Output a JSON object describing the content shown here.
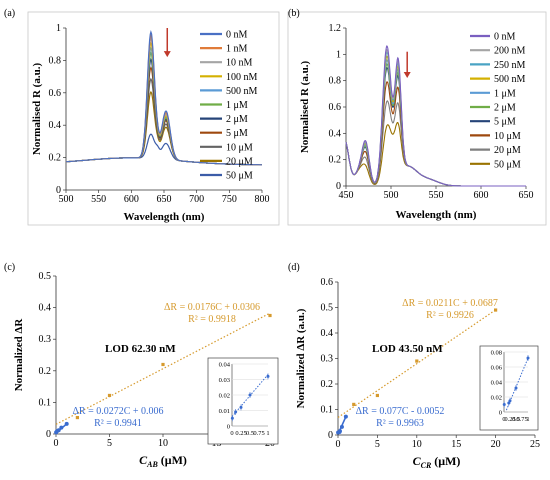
{
  "chart_data": [
    {
      "type": "line",
      "panel_label": "(a)",
      "xlabel": "Wavelength (nm)",
      "ylabel": "Normalised R (a.u.)",
      "xlim": [
        500,
        800
      ],
      "ylim": [
        0,
        1
      ],
      "xticks": [
        "500",
        "550",
        "600",
        "650",
        "700",
        "750",
        "800"
      ],
      "yticks": [
        "0",
        "0.2",
        "0.4",
        "0.6",
        "0.8",
        "1"
      ],
      "legend_position": "right",
      "arrow": {
        "x": 655,
        "from_y": 1.0,
        "to_y": 0.82,
        "color": "#c0392b"
      },
      "series": [
        {
          "name": "0 nM",
          "color": "#4a70c4",
          "peak1": 0.99,
          "peak2": 0.5
        },
        {
          "name": "1 nM",
          "color": "#e07b39",
          "peak1": 0.97,
          "peak2": 0.49
        },
        {
          "name": "10 nM",
          "color": "#a5a5a5",
          "peak1": 0.95,
          "peak2": 0.48
        },
        {
          "name": "100 nM",
          "color": "#d4b000",
          "peak1": 0.92,
          "peak2": 0.47
        },
        {
          "name": "500 nM",
          "color": "#5b9bd5",
          "peak1": 0.89,
          "peak2": 0.47
        },
        {
          "name": "1 μM",
          "color": "#70ad47",
          "peak1": 0.86,
          "peak2": 0.46
        },
        {
          "name": "2 μM",
          "color": "#264478",
          "peak1": 0.82,
          "peak2": 0.45
        },
        {
          "name": "5 μM",
          "color": "#9e480e",
          "peak1": 0.77,
          "peak2": 0.44
        },
        {
          "name": "10 μM",
          "color": "#636363",
          "peak1": 0.7,
          "peak2": 0.42
        },
        {
          "name": "20 μM",
          "color": "#997300",
          "peak1": 0.62,
          "peak2": 0.4
        },
        {
          "name": "50 μM",
          "color": "#3b5ca8",
          "peak1": 0.36,
          "peak2": 0.3
        }
      ]
    },
    {
      "type": "line",
      "panel_label": "(b)",
      "xlabel": "Wavelength (nm)",
      "ylabel": "Normalised R (a.u.)",
      "xlim": [
        450,
        650
      ],
      "ylim": [
        0,
        1.2
      ],
      "xticks": [
        "450",
        "500",
        "550",
        "600",
        "650"
      ],
      "yticks": [
        "0",
        "0.2",
        "0.4",
        "0.6",
        "0.8",
        "1",
        "1.2"
      ],
      "legend_position": "right",
      "arrow": {
        "x": 518,
        "from_y": 1.02,
        "to_y": 0.82,
        "color": "#c0392b"
      },
      "series": [
        {
          "name": "0 nM",
          "color": "#7a5fc0",
          "scale": 1.0
        },
        {
          "name": "200 nM",
          "color": "#a5a5a5",
          "scale": 0.97
        },
        {
          "name": "250 nM",
          "color": "#4aa3c4",
          "scale": 0.95
        },
        {
          "name": "500 nM",
          "color": "#d4b000",
          "scale": 0.92
        },
        {
          "name": "1 μM",
          "color": "#5b9bd5",
          "scale": 0.89
        },
        {
          "name": "2 μM",
          "color": "#70ad47",
          "scale": 0.86
        },
        {
          "name": "5  μM",
          "color": "#264478",
          "scale": 0.83
        },
        {
          "name": "10 μM",
          "color": "#9e480e",
          "scale": 0.72
        },
        {
          "name": "20 μM",
          "color": "#7f7f7f",
          "scale": 0.57
        },
        {
          "name": "50 μM",
          "color": "#997300",
          "scale": 0.38
        }
      ]
    },
    {
      "type": "scatter",
      "panel_label": "(c)",
      "xlabel": "C",
      "xlabel_sub": "AB",
      "xlabel_unit": " (μM)",
      "ylabel": "Normalized ΔR",
      "xlim": [
        0,
        20
      ],
      "ylim": [
        0,
        0.5
      ],
      "xticks": [
        "0",
        "5",
        "10",
        "15",
        "20"
      ],
      "yticks": [
        "0",
        "0.1",
        "0.2",
        "0.3",
        "0.4",
        "0.5"
      ],
      "lod_text": "LOD 62.30 nM",
      "high_series": {
        "color": "#d69a2d",
        "points": [
          [
            2,
            0.052
          ],
          [
            5,
            0.122
          ],
          [
            10,
            0.22
          ],
          [
            20,
            0.375
          ]
        ],
        "fit": {
          "slope": 0.0176,
          "intercept": 0.0306,
          "x_range": [
            0,
            20
          ]
        },
        "equation": "ΔR = 0.0176C + 0.0306",
        "r2": "R² = 0.9918"
      },
      "low_series": {
        "color": "#3a6ccf",
        "points": [
          [
            0.01,
            0.005
          ],
          [
            0.1,
            0.009
          ],
          [
            0.25,
            0.012
          ],
          [
            0.5,
            0.02
          ],
          [
            1,
            0.032
          ]
        ],
        "fit": {
          "slope": 0.0272,
          "intercept": 0.006,
          "x_range": [
            0,
            1
          ]
        },
        "equation": "ΔR = 0.0272C + 0.006",
        "r2": "R² = 0.9941"
      },
      "inset": {
        "xlim": [
          0,
          1
        ],
        "ylim": [
          0,
          0.04
        ],
        "xticks": [
          "0",
          "0.25",
          "0.5",
          "0.75",
          "1"
        ],
        "yticks": [
          "0",
          "0.01",
          "0.02",
          "0.03",
          "0.04"
        ]
      }
    },
    {
      "type": "scatter",
      "panel_label": "(d)",
      "xlabel": "C",
      "xlabel_sub": "CR",
      "xlabel_unit": " (μM)",
      "ylabel": "Normalized ΔR (a.u.)",
      "xlim": [
        0,
        25
      ],
      "ylim": [
        0,
        0.6
      ],
      "xticks": [
        "0",
        "5",
        "10",
        "15",
        "20",
        "25"
      ],
      "yticks": [
        "0",
        "0.1",
        "0.2",
        "0.3",
        "0.4",
        "0.5",
        "0.6"
      ],
      "lod_text": "LOD 43.50 nM",
      "high_series": {
        "color": "#d69a2d",
        "points": [
          [
            2,
            0.12
          ],
          [
            5,
            0.155
          ],
          [
            10,
            0.29
          ],
          [
            20,
            0.49
          ]
        ],
        "fit": {
          "slope": 0.0211,
          "intercept": 0.0687,
          "x_range": [
            0,
            20
          ]
        },
        "equation": "ΔR = 0.0211C + 0.0687",
        "r2": "R² = 0.9926"
      },
      "low_series": {
        "color": "#3a6ccf",
        "points": [
          [
            0.01,
            0.01
          ],
          [
            0.2,
            0.012
          ],
          [
            0.25,
            0.015
          ],
          [
            0.5,
            0.032
          ],
          [
            1,
            0.072
          ]
        ],
        "fit": {
          "slope": 0.077,
          "intercept": -0.0052,
          "x_range": [
            0.1,
            1
          ]
        },
        "equation": "ΔR = 0.077C - 0.0052",
        "r2": "R² = 0.9963"
      },
      "inset": {
        "xlim": [
          0,
          1
        ],
        "ylim": [
          0,
          0.08
        ],
        "xticks": [
          "0",
          "0.25",
          "0.5",
          "0.75",
          "1"
        ],
        "yticks": [
          "0",
          "0.02",
          "0.04",
          "0.06",
          "0.08"
        ]
      }
    }
  ]
}
